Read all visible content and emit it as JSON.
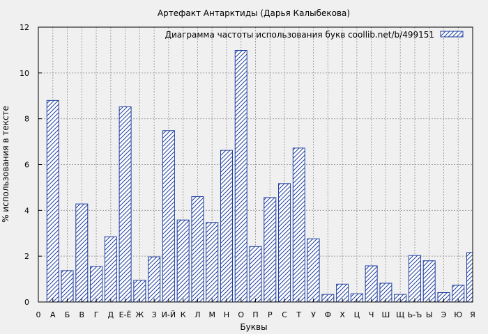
{
  "colors": {
    "background": "#f0f0f0",
    "bar_stroke": "#1f3fa0",
    "grid": "#a0a0a0"
  },
  "chart_data": {
    "type": "bar",
    "title": "Артефакт Антарктиды (Дарья Калыбекова)",
    "xlabel": "Буквы",
    "ylabel": "% использования в тексте",
    "legend_text": "Диаграмма частоты использования букв  coollib.net/b/499151",
    "legend_position": "top-right",
    "grid": true,
    "ylim": [
      0,
      12
    ],
    "yticks": [
      "0",
      "2",
      "4",
      "6",
      "8",
      "10",
      "12"
    ],
    "categories": [
      "0",
      "А",
      "Б",
      "В",
      "Г",
      "Д",
      "Е-Ё",
      "Ж",
      "З",
      "И-Й",
      "К",
      "Л",
      "М",
      "Н",
      "О",
      "П",
      "Р",
      "С",
      "Т",
      "У",
      "Ф",
      "Х",
      "Ц",
      "Ч",
      "Ш",
      "Щ",
      "Ь-Ъ",
      "Ы",
      "Э",
      "Ю",
      "Я"
    ],
    "values": [
      0,
      8.8,
      1.37,
      4.28,
      1.55,
      2.85,
      8.52,
      0.95,
      1.97,
      7.48,
      3.58,
      4.6,
      3.47,
      6.62,
      10.98,
      2.42,
      4.56,
      5.17,
      6.72,
      2.76,
      0.33,
      0.78,
      0.36,
      1.58,
      0.82,
      0.33,
      2.03,
      1.8,
      0.41,
      0.73,
      2.16
    ]
  }
}
